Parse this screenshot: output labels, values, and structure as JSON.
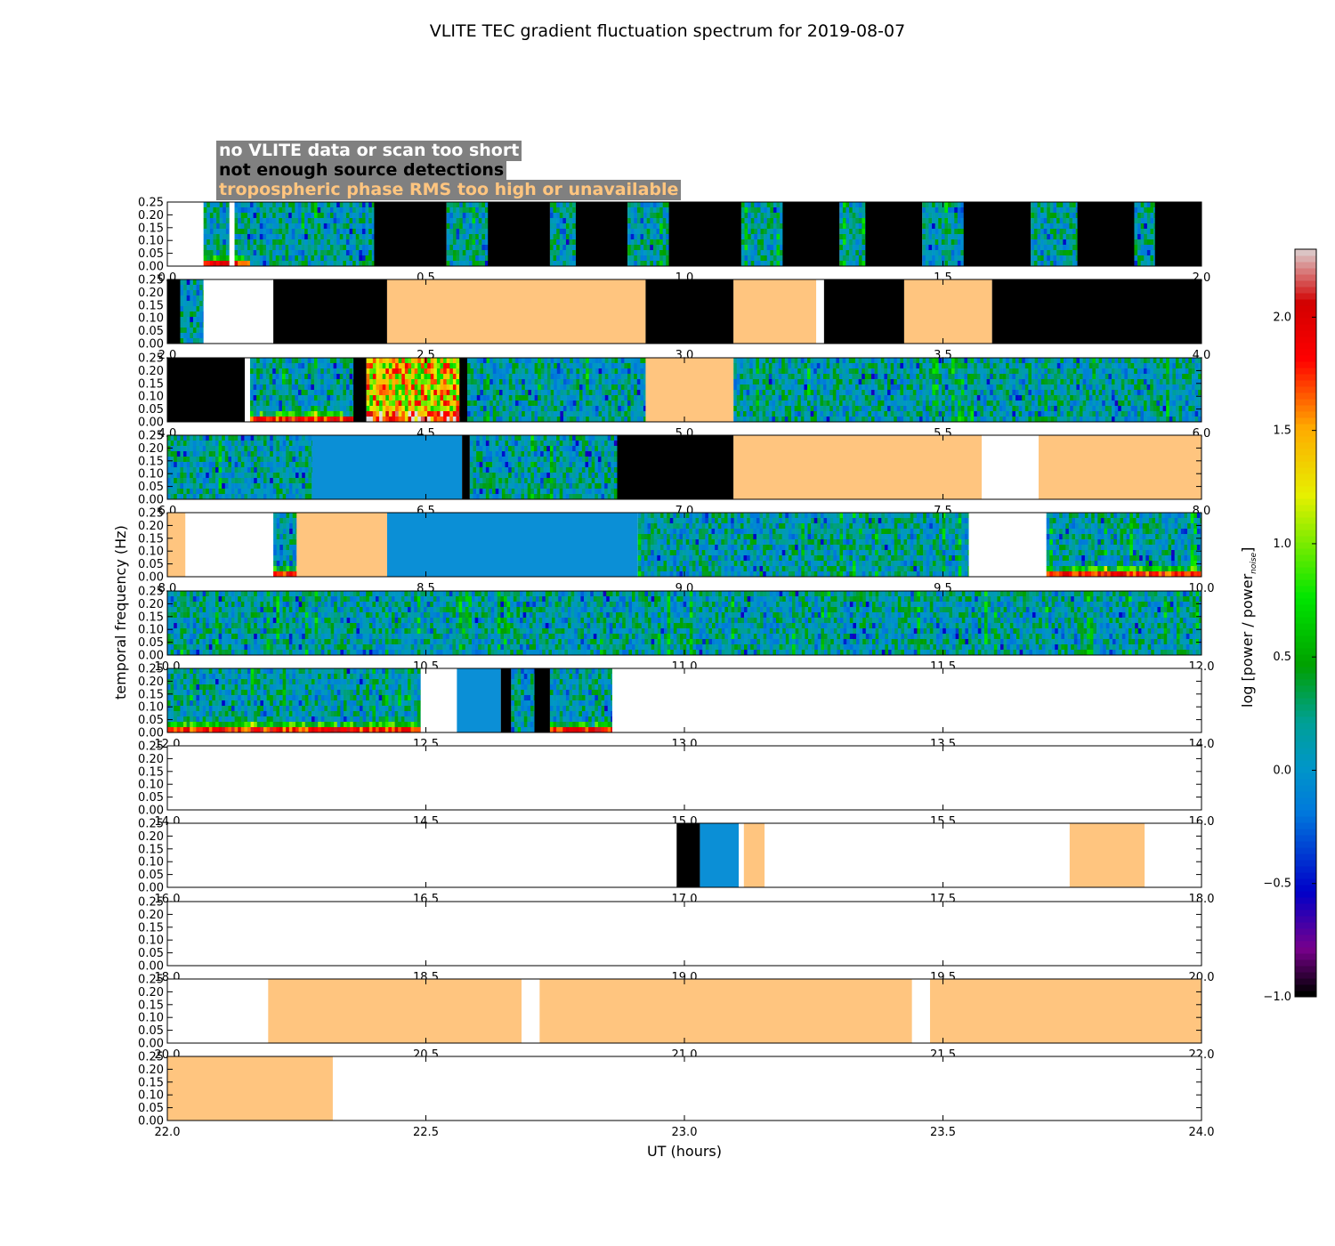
{
  "chart_data": {
    "type": "heatmap",
    "title": "VLITE TEC gradient fluctuation spectrum for 2019-08-07",
    "xlabel": "UT (hours)",
    "ylabel": "temporal frequency (Hz)",
    "ylim": [
      0,
      0.25
    ],
    "yticks": [
      "0.00",
      "0.05",
      "0.10",
      "0.15",
      "0.20",
      "0.25"
    ],
    "colorbar": {
      "label": "log [power / power",
      "label_sub": "noise",
      "label_end": "]",
      "range": [
        -1.0,
        2.3
      ],
      "ticks": [
        "−1.0",
        "−0.5",
        "0.0",
        "0.5",
        "1.0",
        "1.5",
        "2.0"
      ],
      "tick_values": [
        -1.0,
        -0.5,
        0.0,
        0.5,
        1.0,
        1.5,
        2.0
      ]
    },
    "legend": [
      {
        "label": "no VLITE data or scan too short",
        "color": "#ffffff"
      },
      {
        "label": "not enough source detections",
        "color": "#000000"
      },
      {
        "label": "tropospheric phase RMS too high or unavailable",
        "color": "#ffc57f"
      }
    ],
    "panels": [
      {
        "range": [
          0,
          2
        ],
        "ticks": [
          "0.0",
          "0.5",
          "1.0",
          "1.5",
          "2.0"
        ],
        "segments": [
          [
            0.07,
            0.12,
            "s",
            1
          ],
          [
            0.12,
            0.13,
            "w"
          ],
          [
            0.13,
            0.16,
            "s",
            1
          ],
          [
            0.16,
            0.4,
            "s",
            0
          ],
          [
            0.4,
            0.54,
            "b"
          ],
          [
            0.54,
            0.62,
            "s",
            0
          ],
          [
            0.62,
            0.74,
            "b"
          ],
          [
            0.74,
            0.79,
            "s",
            0
          ],
          [
            0.79,
            0.89,
            "b"
          ],
          [
            0.89,
            0.97,
            "s",
            0
          ],
          [
            0.97,
            1.11,
            "b"
          ],
          [
            1.11,
            1.19,
            "s",
            0
          ],
          [
            1.19,
            1.3,
            "b"
          ],
          [
            1.3,
            1.35,
            "s",
            0
          ],
          [
            1.35,
            1.46,
            "b"
          ],
          [
            1.46,
            1.54,
            "s",
            0
          ],
          [
            1.54,
            1.67,
            "b"
          ],
          [
            1.67,
            1.76,
            "s",
            0
          ],
          [
            1.76,
            1.87,
            "b"
          ],
          [
            1.87,
            1.91,
            "s",
            0
          ],
          [
            1.91,
            2.0,
            "b"
          ]
        ]
      },
      {
        "range": [
          2,
          4
        ],
        "ticks": [
          "2.0",
          "2.5",
          "3.0",
          "3.5",
          "4.0"
        ],
        "segments": [
          [
            2.0,
            2.025,
            "b"
          ],
          [
            2.025,
            2.07,
            "s",
            0
          ],
          [
            2.07,
            2.205,
            "w"
          ],
          [
            2.205,
            2.425,
            "b"
          ],
          [
            2.425,
            2.925,
            "o"
          ],
          [
            2.925,
            3.095,
            "b"
          ],
          [
            3.095,
            3.255,
            "o"
          ],
          [
            3.255,
            3.27,
            "w"
          ],
          [
            3.27,
            3.425,
            "b"
          ],
          [
            3.425,
            3.595,
            "o"
          ],
          [
            3.595,
            4.0,
            "b"
          ]
        ]
      },
      {
        "range": [
          4,
          6
        ],
        "ticks": [
          "4.0",
          "4.5",
          "5.0",
          "5.5",
          "6.0"
        ],
        "segments": [
          [
            4.0,
            4.15,
            "b"
          ],
          [
            4.15,
            4.16,
            "w"
          ],
          [
            4.16,
            4.36,
            "s",
            1
          ],
          [
            4.36,
            4.385,
            "b"
          ],
          [
            4.385,
            4.565,
            "s",
            2
          ],
          [
            4.565,
            4.58,
            "b"
          ],
          [
            4.58,
            4.925,
            "s",
            0
          ],
          [
            4.925,
            5.095,
            "o"
          ],
          [
            5.095,
            6.0,
            "s",
            0
          ]
        ]
      },
      {
        "range": [
          6,
          8
        ],
        "ticks": [
          "6.0",
          "6.5",
          "7.0",
          "7.5",
          "8.0"
        ],
        "segments": [
          [
            6.0,
            6.28,
            "s",
            0
          ],
          [
            6.28,
            6.57,
            "c"
          ],
          [
            6.57,
            6.585,
            "b"
          ],
          [
            6.585,
            6.87,
            "s",
            0
          ],
          [
            6.87,
            7.095,
            "b"
          ],
          [
            7.095,
            7.575,
            "o"
          ],
          [
            7.575,
            7.685,
            "w"
          ],
          [
            7.685,
            8.0,
            "o"
          ]
        ]
      },
      {
        "range": [
          8,
          10
        ],
        "ticks": [
          "8.0",
          "8.5",
          "9.0",
          "9.5",
          "10.0"
        ],
        "segments": [
          [
            8.0,
            8.035,
            "o"
          ],
          [
            8.035,
            8.205,
            "w"
          ],
          [
            8.205,
            8.25,
            "s",
            1
          ],
          [
            8.25,
            8.425,
            "o"
          ],
          [
            8.425,
            8.91,
            "c"
          ],
          [
            8.91,
            9.55,
            "s",
            0
          ],
          [
            9.55,
            9.7,
            "w"
          ],
          [
            9.7,
            10.0,
            "s",
            1
          ]
        ]
      },
      {
        "range": [
          10,
          12
        ],
        "ticks": [
          "10.0",
          "10.5",
          "11.0",
          "11.5",
          "12.0"
        ],
        "segments": [
          [
            10.0,
            12.0,
            "s",
            0
          ]
        ]
      },
      {
        "range": [
          12,
          14
        ],
        "ticks": [
          "12.0",
          "12.5",
          "13.0",
          "13.5",
          "14.0"
        ],
        "segments": [
          [
            12.0,
            12.49,
            "s",
            1
          ],
          [
            12.49,
            12.56,
            "w"
          ],
          [
            12.56,
            12.645,
            "c"
          ],
          [
            12.645,
            12.665,
            "b"
          ],
          [
            12.665,
            12.71,
            "s",
            0
          ],
          [
            12.71,
            12.74,
            "b"
          ],
          [
            12.74,
            12.86,
            "s",
            1
          ]
        ]
      },
      {
        "range": [
          14,
          16
        ],
        "ticks": [
          "14.0",
          "14.5",
          "15.0",
          "15.5",
          "16.0"
        ],
        "segments": []
      },
      {
        "range": [
          16,
          18
        ],
        "ticks": [
          "16.0",
          "16.5",
          "17.0",
          "17.5",
          "18.0"
        ],
        "segments": [
          [
            16.985,
            17.03,
            "b"
          ],
          [
            17.03,
            17.105,
            "c"
          ],
          [
            17.115,
            17.155,
            "o"
          ],
          [
            17.745,
            17.89,
            "o"
          ]
        ]
      },
      {
        "range": [
          18,
          20
        ],
        "ticks": [
          "18.0",
          "18.5",
          "19.0",
          "19.5",
          "20.0"
        ],
        "segments": []
      },
      {
        "range": [
          20,
          22
        ],
        "ticks": [
          "20.0",
          "20.5",
          "21.0",
          "21.5",
          "22.0"
        ],
        "segments": [
          [
            20.195,
            20.685,
            "o"
          ],
          [
            20.72,
            21.44,
            "o"
          ],
          [
            21.475,
            22.0,
            "o"
          ]
        ]
      },
      {
        "range": [
          22,
          24
        ],
        "ticks": [
          "22.0",
          "22.5",
          "23.0",
          "23.5",
          "24.0"
        ],
        "segments": [
          [
            22.0,
            22.32,
            "o"
          ]
        ]
      }
    ]
  }
}
